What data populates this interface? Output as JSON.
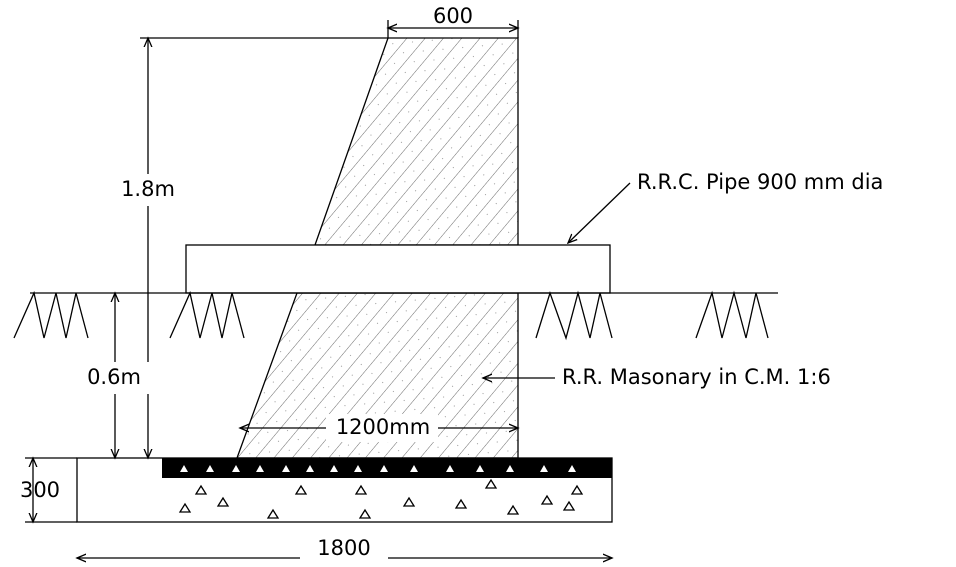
{
  "dimensions": {
    "top_width": "600",
    "height": "1.8m",
    "depth": "0.6m",
    "base_width": "1200mm",
    "foundation_thickness": "300",
    "foundation_width": "1800"
  },
  "labels": {
    "pipe": "R.R.C. Pipe 900 mm dia",
    "masonry": "R.R. Masonary in C.M. 1:6"
  }
}
